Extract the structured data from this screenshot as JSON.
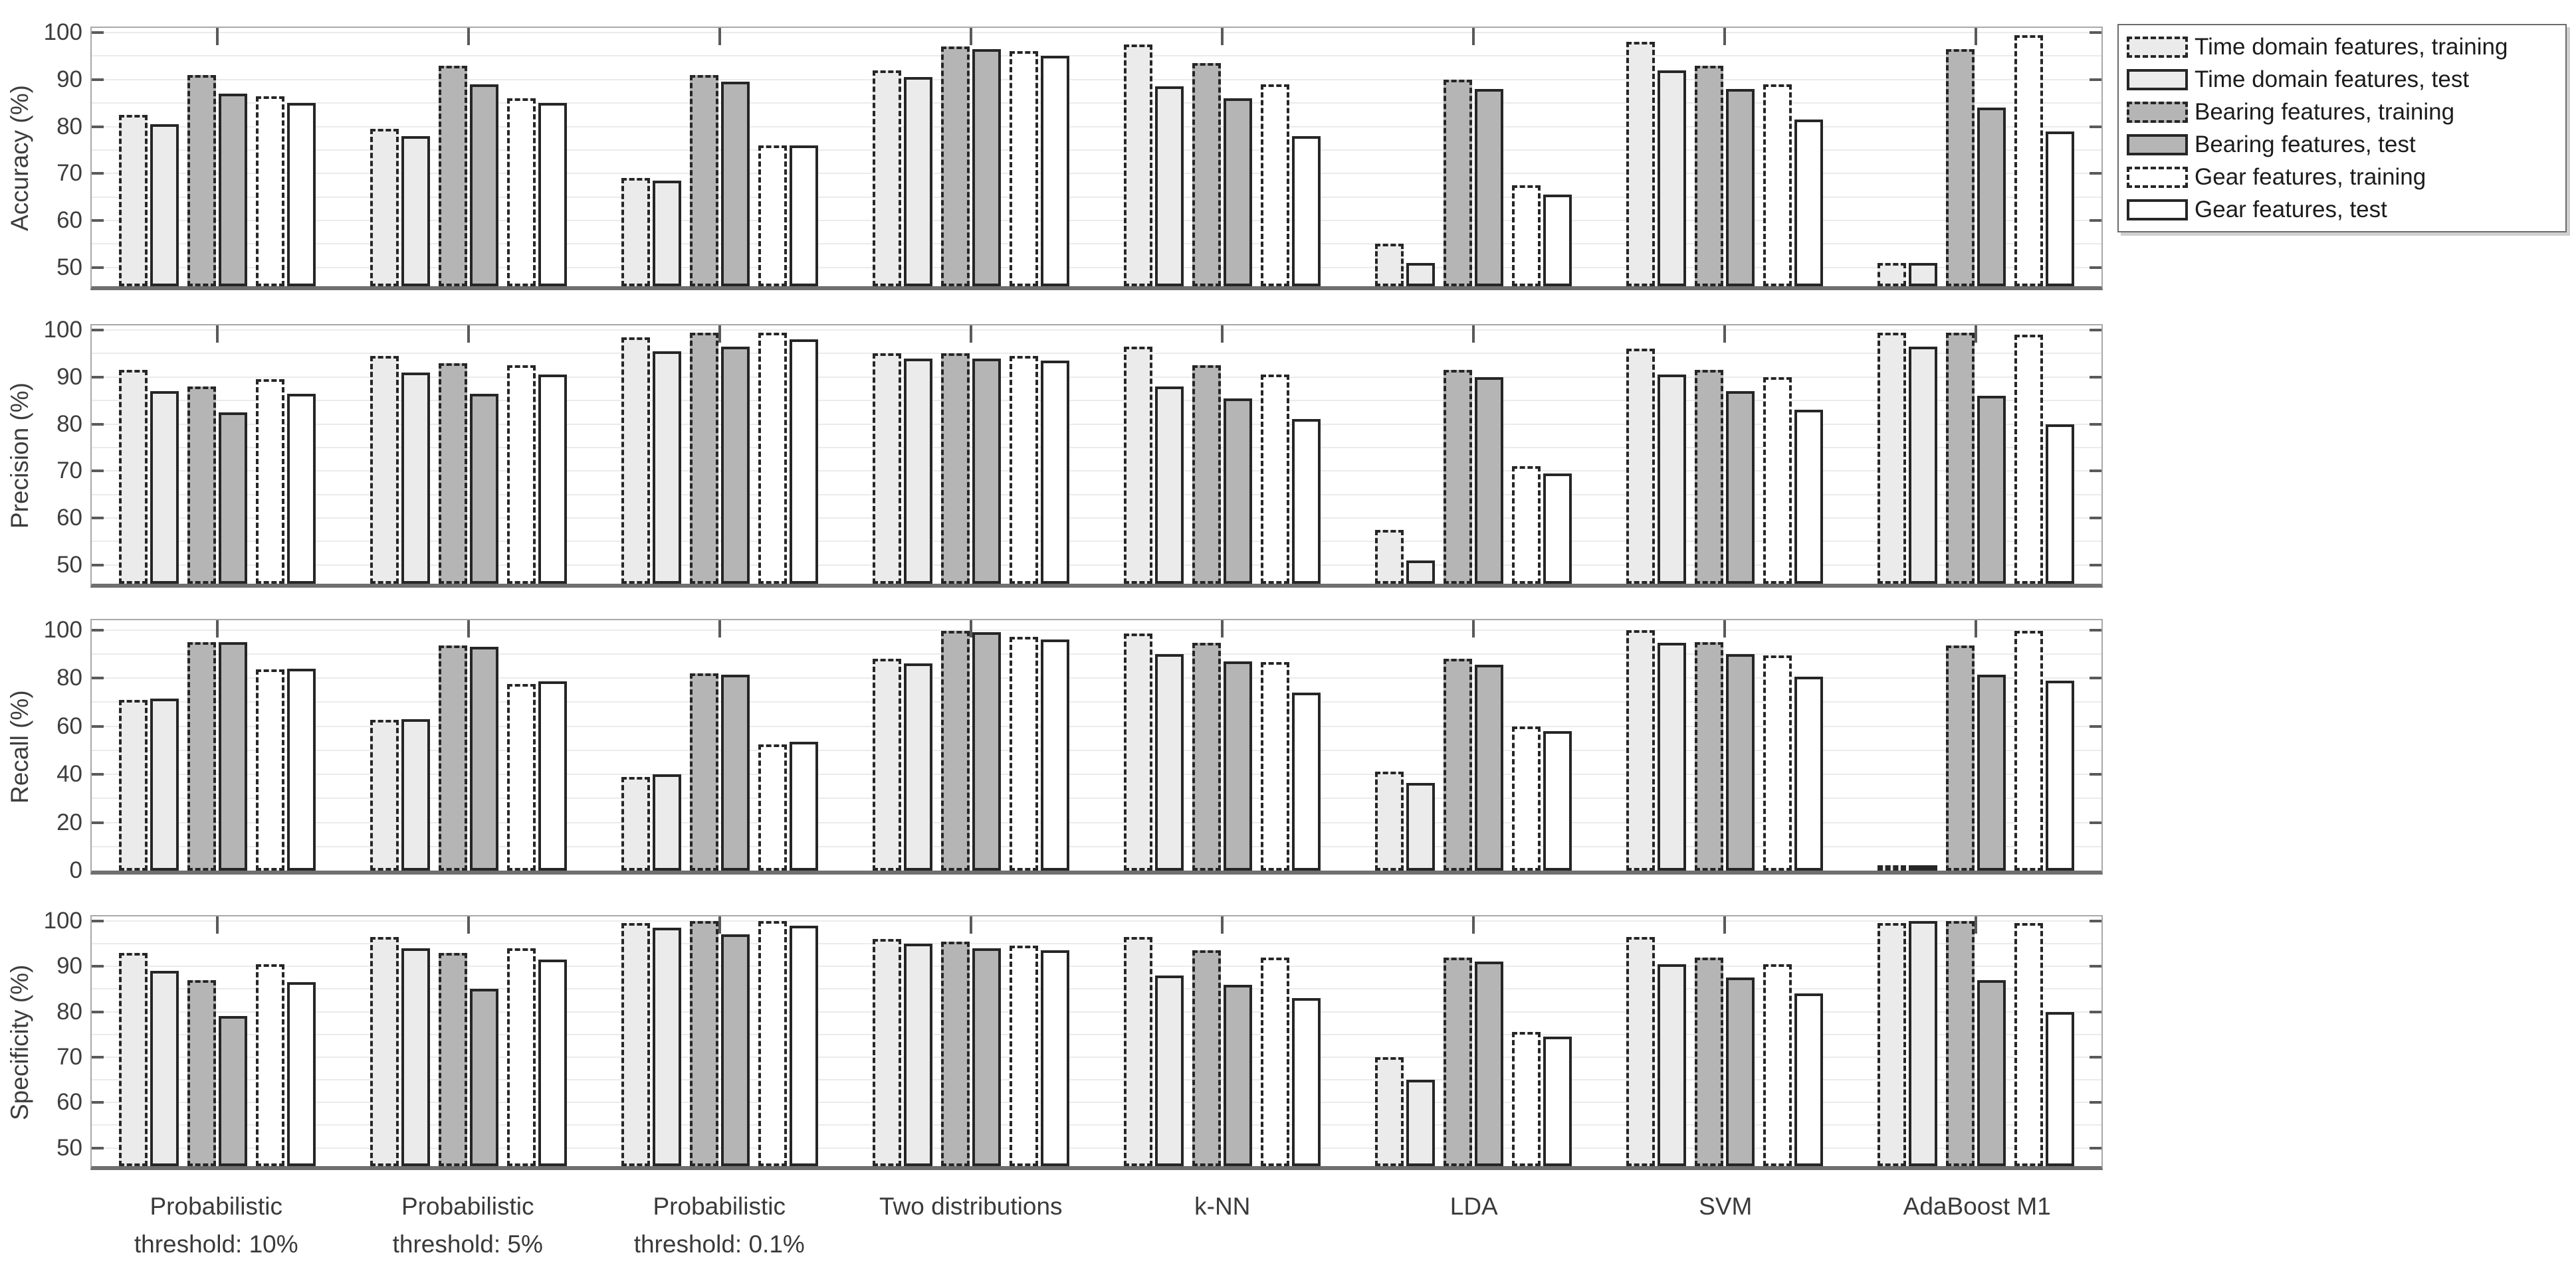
{
  "figure": {
    "background": "#ffffff"
  },
  "styles": {
    "bar_border": "#262626",
    "grid_color": "#ebebeb",
    "axis_box_color": "#a8a8a8",
    "axis_baseline_color": "#6f6f6f",
    "text_color": "#3d3d3d"
  },
  "x_axis": {
    "category_label_lines": [
      [
        "Probabilistic",
        "threshold: 10%"
      ],
      [
        "Probabilistic",
        "threshold: 5%"
      ],
      [
        "Probabilistic",
        "threshold: 0.1%"
      ],
      [
        "Two distributions"
      ],
      [
        "k-NN"
      ],
      [
        "LDA"
      ],
      [
        "SVM"
      ],
      [
        "AdaBoost M1"
      ]
    ]
  },
  "chart_data": {
    "type": "bar",
    "layout": "4 vertically stacked panels sharing one categorical x-axis; grouped bars, 8 groups x 6 bars; legend outside top-right; light gray horizontal gridlines",
    "categories": [
      "Probabilistic threshold: 10%",
      "Probabilistic threshold: 5%",
      "Probabilistic threshold: 0.1%",
      "Two distributions",
      "k-NN",
      "LDA",
      "SVM",
      "AdaBoost M1"
    ],
    "series": [
      {
        "name": "Time domain features, training",
        "fill": "#ebebeb",
        "border_style": "dashed"
      },
      {
        "name": "Time domain features, test",
        "fill": "#ebebeb",
        "border_style": "solid"
      },
      {
        "name": "Bearing features, training",
        "fill": "#b5b5b5",
        "border_style": "dashed"
      },
      {
        "name": "Bearing features, test",
        "fill": "#b5b5b5",
        "border_style": "solid"
      },
      {
        "name": "Gear features, training",
        "fill": "#ffffff",
        "border_style": "dashed"
      },
      {
        "name": "Gear features, test",
        "fill": "#ffffff",
        "border_style": "solid"
      }
    ],
    "panels": [
      {
        "ylabel": "Accuracy (%)",
        "ylim": [
          46,
          101
        ],
        "yticks": [
          50,
          60,
          70,
          80,
          90,
          100
        ],
        "gridline_step": 5,
        "values": [
          [
            82.5,
            80.5,
            91,
            87,
            86.5,
            85
          ],
          [
            79.5,
            78,
            93,
            89,
            86,
            85
          ],
          [
            69,
            68.5,
            91,
            89.5,
            76,
            76
          ],
          [
            92,
            90.5,
            97,
            96.5,
            96,
            95
          ],
          [
            97.5,
            88.5,
            93.5,
            86,
            89,
            78
          ],
          [
            55,
            51,
            90,
            88,
            67.5,
            65.5
          ],
          [
            98,
            92,
            93,
            88,
            89,
            81.5
          ],
          [
            51,
            51,
            96.5,
            84,
            99.5,
            79
          ]
        ]
      },
      {
        "ylabel": "Precision (%)",
        "ylim": [
          46,
          101
        ],
        "yticks": [
          50,
          60,
          70,
          80,
          90,
          100
        ],
        "gridline_step": 5,
        "values": [
          [
            91.5,
            87,
            88,
            82.5,
            89.5,
            86.5
          ],
          [
            94.5,
            91,
            93,
            86.5,
            92.5,
            90.5
          ],
          [
            98.5,
            95.5,
            99.5,
            96.5,
            99.5,
            98
          ],
          [
            95,
            94,
            95,
            94,
            94.5,
            93.5
          ],
          [
            96.5,
            88,
            92.5,
            85.5,
            90.5,
            81
          ],
          [
            57.5,
            51,
            91.5,
            90,
            71,
            69.5
          ],
          [
            96,
            90.5,
            91.5,
            87,
            90,
            83
          ],
          [
            99.5,
            96.5,
            99.5,
            86,
            99,
            80
          ]
        ]
      },
      {
        "ylabel": "Recall (%)",
        "ylim": [
          0,
          104
        ],
        "yticks": [
          0,
          20,
          40,
          60,
          80,
          100
        ],
        "gridline_step": 10,
        "values": [
          [
            71,
            71.5,
            95,
            95,
            83.5,
            84
          ],
          [
            62.5,
            63,
            93.5,
            93,
            77.5,
            78.5
          ],
          [
            39,
            40,
            82,
            81.5,
            52.5,
            53.5
          ],
          [
            88,
            86,
            99.5,
            99,
            97,
            96
          ],
          [
            98.5,
            90,
            94.5,
            87,
            86.5,
            74
          ],
          [
            41,
            36.5,
            88,
            85.5,
            60,
            58
          ],
          [
            100,
            94.5,
            95,
            90,
            89.5,
            80.5
          ],
          [
            1,
            1,
            93.5,
            81.5,
            99.5,
            79
          ]
        ]
      },
      {
        "ylabel": "Specificity (%)",
        "ylim": [
          46,
          101
        ],
        "yticks": [
          50,
          60,
          70,
          80,
          90,
          100
        ],
        "gridline_step": 5,
        "values": [
          [
            93,
            89,
            87,
            79,
            90.5,
            86.5
          ],
          [
            96.5,
            94,
            93,
            85,
            94,
            91.5
          ],
          [
            99.5,
            98.5,
            100,
            97,
            100,
            99
          ],
          [
            96,
            95,
            95.5,
            94,
            94.5,
            93.5
          ],
          [
            96.5,
            88,
            93.5,
            86,
            92,
            83
          ],
          [
            70,
            65,
            92,
            91,
            75.5,
            74.5
          ],
          [
            96.5,
            90.5,
            92,
            87.5,
            90.5,
            84
          ],
          [
            99.5,
            100,
            100,
            87,
            99.5,
            80
          ]
        ]
      }
    ],
    "legend_position": "outside top-right",
    "grid": true
  }
}
